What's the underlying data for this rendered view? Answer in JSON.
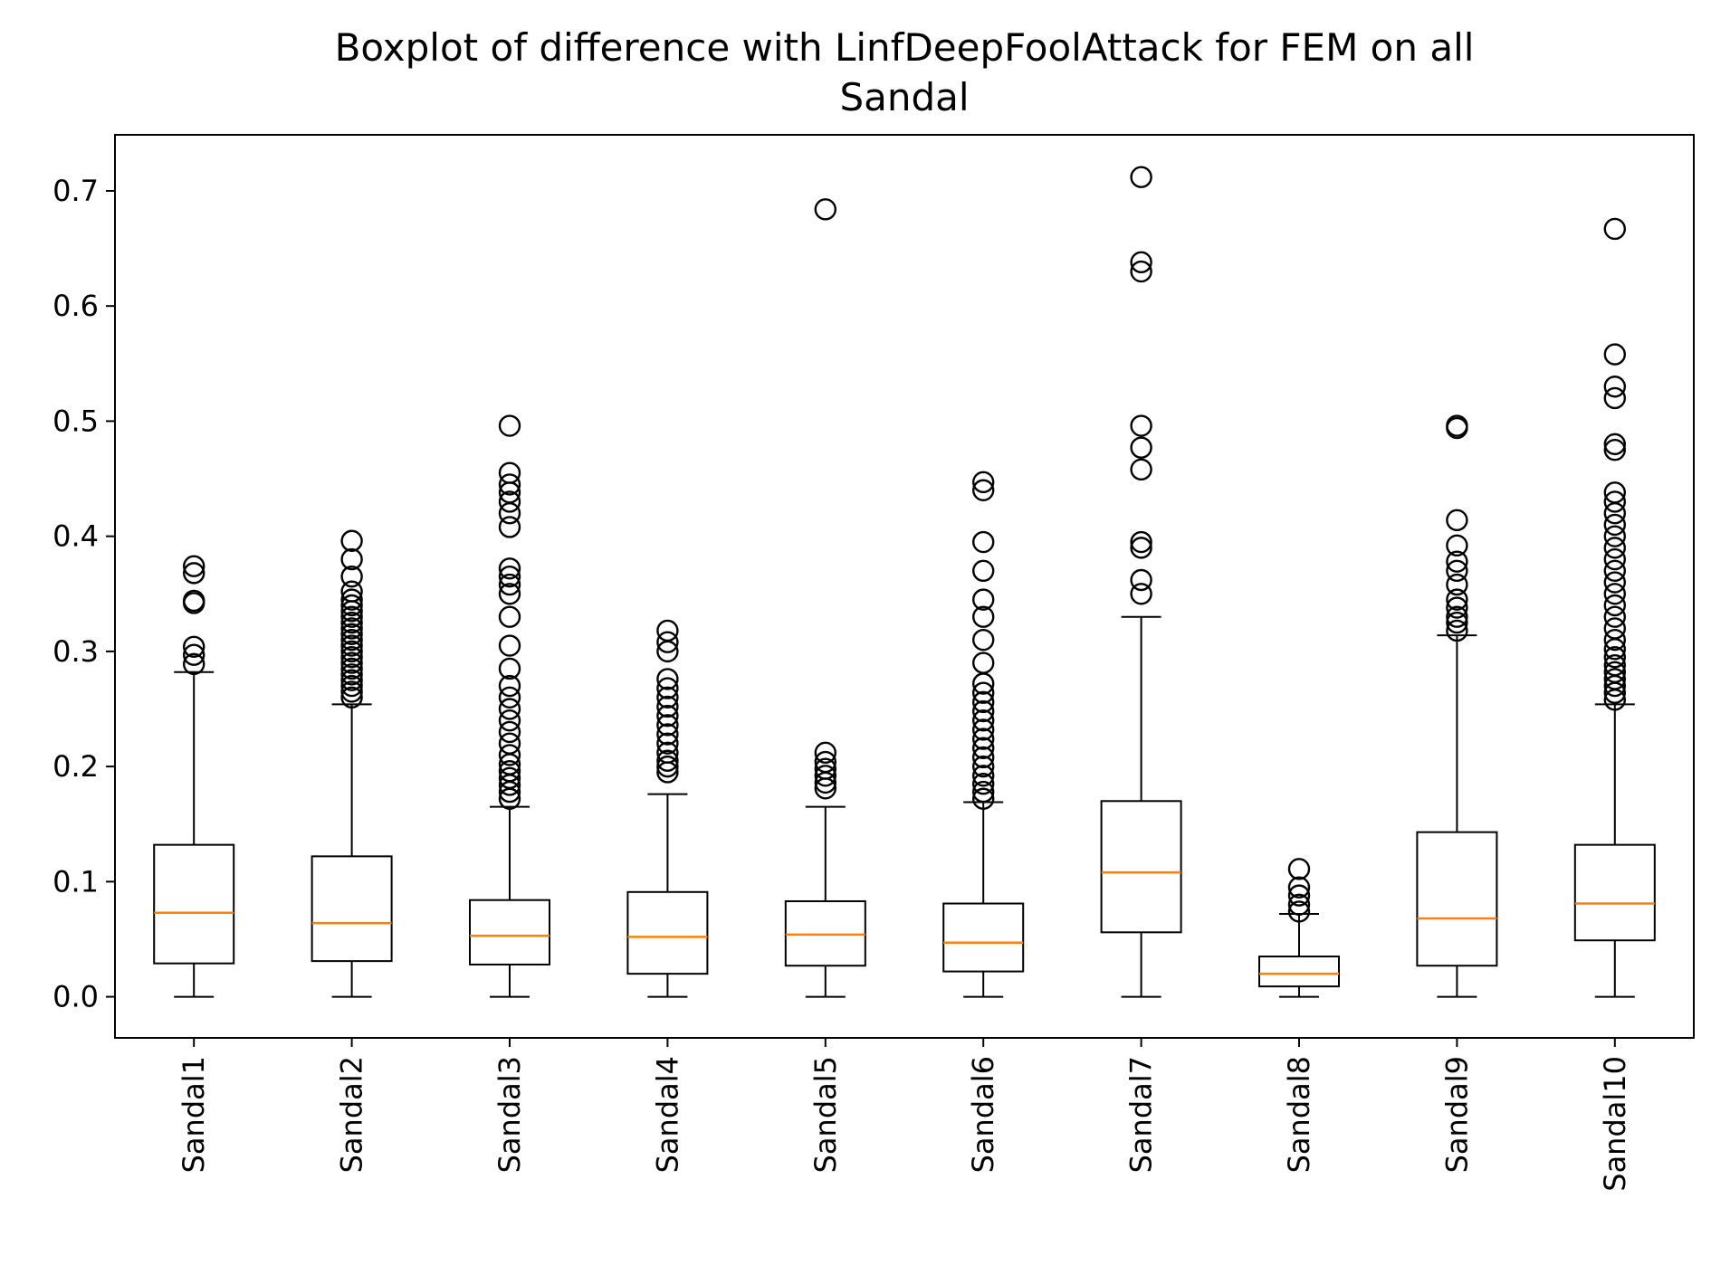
{
  "chart_data": {
    "type": "boxplot",
    "title_lines": [
      "Boxplot of difference with LinfDeepFoolAttack for FEM on all",
      "Sandal"
    ],
    "xlabel": "",
    "ylabel": "",
    "ylim": [
      -0.0357,
      0.7487
    ],
    "yticks": [
      0.0,
      0.1,
      0.2,
      0.3,
      0.4,
      0.5,
      0.6,
      0.7
    ],
    "ytick_labels": [
      "0.0",
      "0.1",
      "0.2",
      "0.3",
      "0.4",
      "0.5",
      "0.6",
      "0.7"
    ],
    "categories": [
      "Sandal1",
      "Sandal2",
      "Sandal3",
      "Sandal4",
      "Sandal5",
      "Sandal6",
      "Sandal7",
      "Sandal8",
      "Sandal9",
      "Sandal10"
    ],
    "grid": false,
    "colors": {
      "box": "#000000",
      "median": "#ff7f0e",
      "flier": "#000000"
    },
    "boxes": [
      {
        "name": "Sandal1",
        "whislo": 0.0,
        "q1": 0.029,
        "med": 0.073,
        "q3": 0.132,
        "whishi": 0.282,
        "fliers": [
          0.289,
          0.297,
          0.304,
          0.342,
          0.344,
          0.368,
          0.374
        ]
      },
      {
        "name": "Sandal2",
        "whislo": 0.0,
        "q1": 0.031,
        "med": 0.064,
        "q3": 0.122,
        "whishi": 0.254,
        "fliers": [
          0.26,
          0.265,
          0.27,
          0.275,
          0.28,
          0.285,
          0.29,
          0.295,
          0.3,
          0.305,
          0.31,
          0.315,
          0.32,
          0.325,
          0.33,
          0.335,
          0.34,
          0.345,
          0.352,
          0.365,
          0.38,
          0.396
        ]
      },
      {
        "name": "Sandal3",
        "whislo": 0.0,
        "q1": 0.028,
        "med": 0.053,
        "q3": 0.084,
        "whishi": 0.165,
        "fliers": [
          0.172,
          0.178,
          0.184,
          0.19,
          0.196,
          0.202,
          0.21,
          0.22,
          0.23,
          0.24,
          0.25,
          0.26,
          0.27,
          0.285,
          0.305,
          0.33,
          0.35,
          0.358,
          0.365,
          0.372,
          0.408,
          0.42,
          0.43,
          0.438,
          0.445,
          0.455,
          0.496
        ]
      },
      {
        "name": "Sandal4",
        "whislo": 0.0,
        "q1": 0.02,
        "med": 0.052,
        "q3": 0.091,
        "whishi": 0.176,
        "fliers": [
          0.195,
          0.2,
          0.205,
          0.212,
          0.22,
          0.228,
          0.236,
          0.244,
          0.252,
          0.26,
          0.268,
          0.276,
          0.3,
          0.308,
          0.318
        ]
      },
      {
        "name": "Sandal5",
        "whislo": 0.0,
        "q1": 0.027,
        "med": 0.054,
        "q3": 0.083,
        "whishi": 0.165,
        "fliers": [
          0.181,
          0.186,
          0.192,
          0.198,
          0.204,
          0.212,
          0.684
        ]
      },
      {
        "name": "Sandal6",
        "whislo": 0.0,
        "q1": 0.022,
        "med": 0.047,
        "q3": 0.081,
        "whishi": 0.169,
        "fliers": [
          0.172,
          0.178,
          0.185,
          0.192,
          0.2,
          0.208,
          0.216,
          0.224,
          0.232,
          0.24,
          0.248,
          0.256,
          0.264,
          0.272,
          0.29,
          0.31,
          0.33,
          0.345,
          0.37,
          0.395,
          0.44,
          0.447
        ]
      },
      {
        "name": "Sandal7",
        "whislo": 0.0,
        "q1": 0.056,
        "med": 0.108,
        "q3": 0.17,
        "whishi": 0.33,
        "fliers": [
          0.35,
          0.362,
          0.39,
          0.395,
          0.458,
          0.477,
          0.496,
          0.63,
          0.638,
          0.712
        ]
      },
      {
        "name": "Sandal8",
        "whislo": 0.0,
        "q1": 0.009,
        "med": 0.02,
        "q3": 0.035,
        "whishi": 0.072,
        "fliers": [
          0.074,
          0.08,
          0.088,
          0.095,
          0.111
        ]
      },
      {
        "name": "Sandal9",
        "whislo": 0.0,
        "q1": 0.027,
        "med": 0.068,
        "q3": 0.143,
        "whishi": 0.314,
        "fliers": [
          0.318,
          0.325,
          0.33,
          0.338,
          0.345,
          0.358,
          0.37,
          0.378,
          0.392,
          0.414,
          0.494,
          0.496
        ]
      },
      {
        "name": "Sandal10",
        "whislo": 0.0,
        "q1": 0.049,
        "med": 0.081,
        "q3": 0.132,
        "whishi": 0.254,
        "fliers": [
          0.258,
          0.264,
          0.27,
          0.276,
          0.282,
          0.288,
          0.295,
          0.302,
          0.31,
          0.32,
          0.33,
          0.34,
          0.35,
          0.36,
          0.37,
          0.38,
          0.39,
          0.4,
          0.41,
          0.42,
          0.43,
          0.438,
          0.475,
          0.48,
          0.52,
          0.53,
          0.558,
          0.667
        ]
      }
    ]
  }
}
